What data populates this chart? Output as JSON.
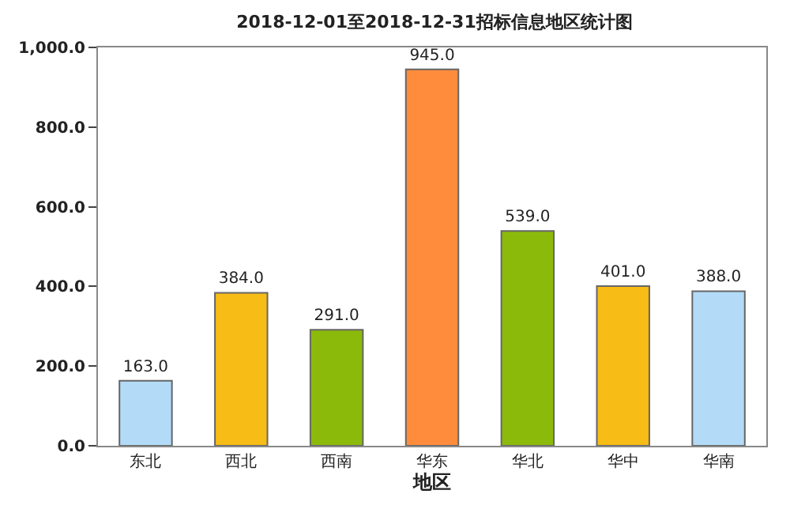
{
  "chart_data": {
    "type": "bar",
    "title": "2018-12-01至2018-12-31招标信息地区统计图",
    "xlabel": "地区",
    "categories": [
      "东北",
      "西北",
      "西南",
      "华东",
      "华北",
      "华中",
      "华南"
    ],
    "values": [
      163,
      384,
      291,
      945,
      539,
      401,
      388
    ],
    "value_labels": [
      "163.0",
      "384.0",
      "291.0",
      "945.0",
      "539.0",
      "401.0",
      "388.0"
    ],
    "colors": [
      "#b3dbf7",
      "#f7bc16",
      "#8cba0a",
      "#ff8c3c",
      "#8cba0a",
      "#f7bc16",
      "#b3dbf7"
    ],
    "ylim": [
      0,
      1000
    ],
    "yticks": [
      {
        "value": 0,
        "label": "0.0"
      },
      {
        "value": 200,
        "label": "200.0"
      },
      {
        "value": 400,
        "label": "400.0"
      },
      {
        "value": 600,
        "label": "600.0"
      },
      {
        "value": 800,
        "label": "800.0"
      },
      {
        "value": 1000,
        "label": "1,000.0"
      }
    ]
  }
}
